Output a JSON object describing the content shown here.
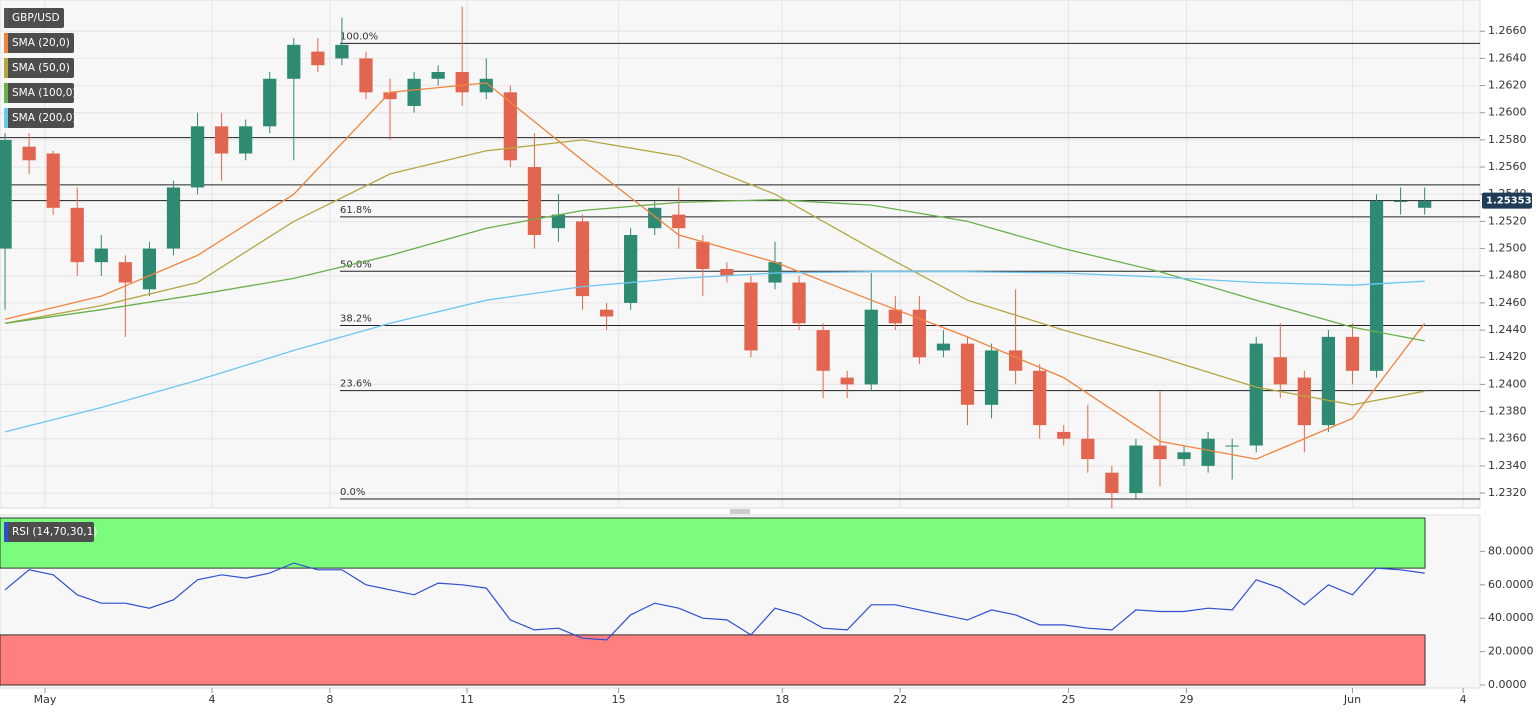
{
  "chart_data": [
    {
      "type": "candlestick",
      "symbol": "GBP/USD",
      "x": [
        0,
        1,
        2,
        3,
        4,
        5,
        6,
        7,
        8,
        9,
        10,
        11,
        12,
        13,
        14,
        15,
        16,
        17,
        18,
        19,
        20,
        21,
        22,
        23,
        24,
        25,
        26,
        27,
        28,
        29,
        30,
        31,
        32,
        33,
        34,
        35,
        36,
        37,
        38,
        39,
        40,
        41,
        42,
        43,
        44,
        45,
        46,
        47,
        48,
        49,
        50,
        51,
        52,
        53,
        54,
        55,
        56,
        57,
        58,
        59
      ],
      "open": [
        1.25,
        1.2575,
        1.257,
        1.253,
        1.249,
        1.249,
        1.247,
        1.25,
        1.2545,
        1.259,
        1.257,
        1.259,
        1.2625,
        1.2645,
        1.264,
        1.264,
        1.2615,
        1.2605,
        1.2625,
        1.263,
        1.2615,
        1.2615,
        1.256,
        1.2515,
        1.252,
        1.2455,
        1.246,
        1.2515,
        1.2525,
        1.2505,
        1.2485,
        1.2475,
        1.2475,
        1.2475,
        1.244,
        1.2405,
        1.24,
        1.2455,
        1.2455,
        1.2425,
        1.243,
        1.2385,
        1.2425,
        1.241,
        1.2365,
        1.236,
        1.2335,
        1.232,
        1.2355,
        1.2345,
        1.234,
        1.2355,
        1.2355,
        1.242,
        1.2405,
        1.237,
        1.2435,
        1.241,
        1.2535,
        1.253
      ],
      "high": [
        1.2585,
        1.2585,
        1.2572,
        1.2545,
        1.251,
        1.2495,
        1.2505,
        1.255,
        1.26,
        1.26,
        1.2595,
        1.263,
        1.2655,
        1.2655,
        1.267,
        1.2645,
        1.2625,
        1.263,
        1.2635,
        1.2678,
        1.264,
        1.262,
        1.2585,
        1.254,
        1.2525,
        1.246,
        1.2515,
        1.2535,
        1.2545,
        1.251,
        1.249,
        1.248,
        1.2505,
        1.248,
        1.2445,
        1.241,
        1.2482,
        1.2465,
        1.2465,
        1.244,
        1.2435,
        1.243,
        1.247,
        1.2415,
        1.237,
        1.2385,
        1.234,
        1.236,
        1.2395,
        1.2355,
        1.2365,
        1.236,
        1.2435,
        1.2445,
        1.241,
        1.244,
        1.2445,
        1.254,
        1.2545,
        1.2545
      ],
      "low": [
        1.2455,
        1.2555,
        1.2525,
        1.248,
        1.248,
        1.2435,
        1.2465,
        1.2495,
        1.254,
        1.255,
        1.2565,
        1.2585,
        1.2565,
        1.263,
        1.2635,
        1.261,
        1.258,
        1.26,
        1.262,
        1.2605,
        1.261,
        1.256,
        1.25,
        1.2505,
        1.2455,
        1.244,
        1.2455,
        1.251,
        1.25,
        1.2465,
        1.2475,
        1.242,
        1.247,
        1.244,
        1.239,
        1.239,
        1.2395,
        1.244,
        1.2415,
        1.242,
        1.237,
        1.2375,
        1.24,
        1.236,
        1.2355,
        1.2335,
        1.2309,
        1.2315,
        1.2325,
        1.234,
        1.2335,
        1.233,
        1.235,
        1.239,
        1.235,
        1.2365,
        1.24,
        1.2405,
        1.2525,
        1.2525
      ],
      "close": [
        1.258,
        1.2565,
        1.253,
        1.249,
        1.25,
        1.2475,
        1.25,
        1.2545,
        1.259,
        1.257,
        1.259,
        1.2625,
        1.265,
        1.2635,
        1.265,
        1.2615,
        1.261,
        1.2625,
        1.263,
        1.2615,
        1.2625,
        1.2565,
        1.251,
        1.2525,
        1.2465,
        1.245,
        1.251,
        1.253,
        1.2515,
        1.2485,
        1.248,
        1.2425,
        1.249,
        1.2445,
        1.241,
        1.24,
        1.2455,
        1.2445,
        1.242,
        1.243,
        1.2385,
        1.2425,
        1.241,
        1.237,
        1.236,
        1.2345,
        1.232,
        1.2355,
        1.2345,
        1.235,
        1.236,
        1.2355,
        1.243,
        1.24,
        1.237,
        1.2435,
        1.241,
        1.2535,
        1.2535,
        1.2535
      ],
      "up_color": "#2f8a73",
      "down_color": "#e2664f",
      "series": [
        {
          "name": "SMA (20,0)",
          "color": "#f0843c",
          "x": [
            0,
            4,
            8,
            12,
            16,
            20,
            24,
            28,
            32,
            36,
            40,
            44,
            48,
            52,
            56,
            59
          ],
          "values": [
            1.2448,
            1.2465,
            1.2495,
            1.254,
            1.2615,
            1.2622,
            1.2565,
            1.251,
            1.249,
            1.2462,
            1.2435,
            1.2405,
            1.2358,
            1.2345,
            1.2375,
            1.2445
          ]
        },
        {
          "name": "SMA (50,0)",
          "color": "#b5a642",
          "x": [
            0,
            4,
            8,
            12,
            16,
            20,
            24,
            28,
            32,
            36,
            40,
            44,
            48,
            52,
            56,
            59
          ],
          "values": [
            1.2445,
            1.2458,
            1.2475,
            1.252,
            1.2555,
            1.2572,
            1.258,
            1.2568,
            1.254,
            1.25,
            1.2462,
            1.244,
            1.242,
            1.2398,
            1.2385,
            1.2395
          ]
        },
        {
          "name": "SMA (100,0)",
          "color": "#6ab04c",
          "x": [
            0,
            4,
            8,
            12,
            16,
            20,
            24,
            28,
            32,
            36,
            40,
            44,
            48,
            52,
            56,
            59
          ],
          "values": [
            1.2445,
            1.2455,
            1.2466,
            1.2478,
            1.2495,
            1.2515,
            1.2528,
            1.2534,
            1.2536,
            1.2532,
            1.252,
            1.25,
            1.2483,
            1.2462,
            1.2442,
            1.2432
          ]
        },
        {
          "name": "SMA (200,0)",
          "color": "#6ec6f0",
          "x": [
            0,
            4,
            8,
            12,
            16,
            20,
            24,
            28,
            32,
            36,
            40,
            44,
            48,
            52,
            56,
            59
          ],
          "values": [
            1.2365,
            1.2383,
            1.2403,
            1.2425,
            1.2445,
            1.2462,
            1.2472,
            1.2478,
            1.2482,
            1.2483,
            1.2483,
            1.2482,
            1.2479,
            1.2475,
            1.2473,
            1.2476
          ]
        }
      ],
      "fib_levels": {
        "labels": [
          "100.0%",
          "61.8%",
          "50.0%",
          "38.2%",
          "23.6%",
          "0.0%"
        ],
        "values": [
          1.26511,
          1.25233,
          1.24833,
          1.24434,
          1.23954,
          1.23156
        ]
      },
      "levels": [
        1.25817,
        1.25469
      ],
      "last": {
        "value": 1.25353,
        "label": "1.25353"
      },
      "xlim": [
        -0.21,
        61.3
      ],
      "ylim": [
        1.2309,
        1.2683
      ],
      "yticks": [
        {
          "value": 1.232,
          "label": "1.2320"
        },
        {
          "value": 1.234,
          "label": "1.2340"
        },
        {
          "value": 1.236,
          "label": "1.2360"
        },
        {
          "value": 1.238,
          "label": "1.2380"
        },
        {
          "value": 1.24,
          "label": "1.2400"
        },
        {
          "value": 1.242,
          "label": "1.2420"
        },
        {
          "value": 1.244,
          "label": "1.2440"
        },
        {
          "value": 1.246,
          "label": "1.2460"
        },
        {
          "value": 1.248,
          "label": "1.2480"
        },
        {
          "value": 1.25,
          "label": "1.2500"
        },
        {
          "value": 1.252,
          "label": "1.2520"
        },
        {
          "value": 1.254,
          "label": "1.2540"
        },
        {
          "value": 1.256,
          "label": "1.2560"
        },
        {
          "value": 1.258,
          "label": "1.2580"
        },
        {
          "value": 1.26,
          "label": "1.2600"
        },
        {
          "value": 1.262,
          "label": "1.2620"
        },
        {
          "value": 1.264,
          "label": "1.2640"
        },
        {
          "value": 1.266,
          "label": "1.2660"
        }
      ],
      "xticks": [
        {
          "value": 1.66,
          "label": "May"
        },
        {
          "value": 8.6,
          "label": "4"
        },
        {
          "value": 13.5,
          "label": "8"
        },
        {
          "value": 19.2,
          "label": "11"
        },
        {
          "value": 25.5,
          "label": "15"
        },
        {
          "value": 32.3,
          "label": "18"
        },
        {
          "value": 37.2,
          "label": "22"
        },
        {
          "value": 44.2,
          "label": "25"
        },
        {
          "value": 49.1,
          "label": "29"
        },
        {
          "value": 56,
          "label": "Jun"
        },
        {
          "value": 60.6,
          "label": "4"
        }
      ],
      "grid": true
    },
    {
      "type": "line",
      "name": "RSI (14,70,30,1)",
      "color": "#2f4fd0",
      "x": [
        0,
        1,
        2,
        3,
        4,
        5,
        6,
        7,
        8,
        9,
        10,
        11,
        12,
        13,
        14,
        15,
        16,
        17,
        18,
        19,
        20,
        21,
        22,
        23,
        24,
        25,
        26,
        27,
        28,
        29,
        30,
        31,
        32,
        33,
        34,
        35,
        36,
        37,
        38,
        39,
        40,
        41,
        42,
        43,
        44,
        45,
        46,
        47,
        48,
        49,
        50,
        51,
        52,
        53,
        54,
        55,
        56,
        57,
        58,
        59
      ],
      "values": [
        57,
        69,
        66,
        54,
        49,
        49,
        46,
        51,
        63,
        66,
        64,
        67,
        73,
        69,
        69,
        60,
        57,
        54,
        61,
        60,
        58,
        39,
        33,
        34,
        28,
        27,
        42,
        49,
        46,
        40,
        39,
        30,
        46,
        42,
        34,
        33,
        48,
        48,
        45,
        42,
        39,
        45,
        42,
        36,
        36,
        34,
        33,
        45,
        44,
        44,
        46,
        45,
        63,
        58,
        48,
        60,
        54,
        70,
        69,
        67
      ],
      "overbought": 70,
      "oversold": 30,
      "xlim": [
        -0.21,
        61.3
      ],
      "ylim": [
        0,
        100
      ],
      "yticks": [
        {
          "value": 0,
          "label": "0.0000"
        },
        {
          "value": 20,
          "label": "20.0000"
        },
        {
          "value": 40,
          "label": "40.0000"
        },
        {
          "value": 60,
          "label": "60.0000"
        },
        {
          "value": 80,
          "label": "80.0000"
        }
      ]
    }
  ]
}
